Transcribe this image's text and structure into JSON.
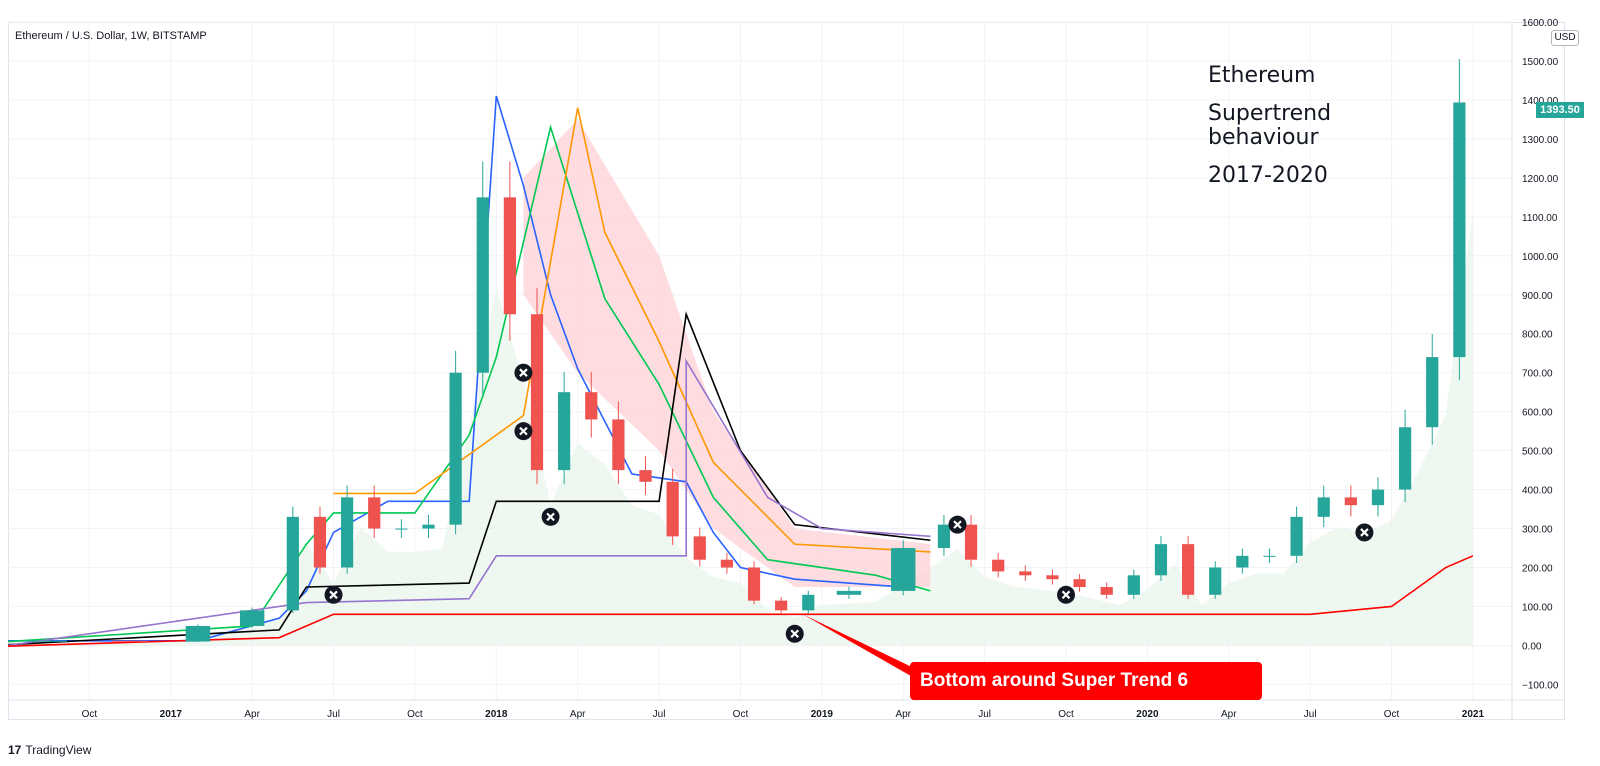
{
  "header": {
    "symbol_title": "Ethereum / U.S. Dollar, 1W, BITSTAMP",
    "currency": "USD"
  },
  "annotation": {
    "line1": "Ethereum",
    "line2": "Supertrend\nbehaviour",
    "line3": "2017-2020"
  },
  "callout": {
    "text": "Bottom around Super Trend 6"
  },
  "last_price": {
    "text": "1393.50",
    "color": "#26a69a"
  },
  "footer": {
    "brand": "TradingView"
  },
  "colors": {
    "up": "#26a69a",
    "down": "#ef5350",
    "st1": "#2962ff",
    "st2": "#00c853",
    "st3": "#ff9800",
    "st4": "#000000",
    "st5": "#9575cd",
    "st6": "#ff0000"
  },
  "chart_data": {
    "type": "line",
    "title": "Ethereum / U.S. Dollar, 1W, BITSTAMP",
    "ylim": [
      -140,
      1600
    ],
    "y_ticks": [
      -100,
      0,
      100,
      200,
      300,
      400,
      500,
      600,
      700,
      800,
      900,
      1000,
      1100,
      1200,
      1300,
      1400,
      1500,
      1600
    ],
    "y_tick_labels": [
      "−100.00",
      "0.00",
      "100.00",
      "200.00",
      "300.00",
      "400.00",
      "500.00",
      "600.00",
      "700.00",
      "800.00",
      "900.00",
      "1000.00",
      "1100.00",
      "1200.00",
      "1300.00",
      "1400.00",
      "1500.00",
      "1600.00"
    ],
    "x_tick_labels": [
      "Oct",
      "2017",
      "Apr",
      "Jul",
      "Oct",
      "2018",
      "Apr",
      "Jul",
      "Oct",
      "2019",
      "Apr",
      "Jul",
      "Oct",
      "2020",
      "Apr",
      "Jul",
      "Oct",
      "2021"
    ],
    "x_tick_bold": [
      false,
      true,
      false,
      false,
      false,
      true,
      false,
      false,
      false,
      true,
      false,
      false,
      false,
      true,
      false,
      false,
      false,
      true
    ],
    "x_tick_dates": [
      "2016-10",
      "2017-01",
      "2017-04",
      "2017-07",
      "2017-10",
      "2018-01",
      "2018-04",
      "2018-07",
      "2018-10",
      "2019-01",
      "2019-04",
      "2019-07",
      "2019-10",
      "2020-01",
      "2020-04",
      "2020-07",
      "2020-10",
      "2021-01"
    ],
    "series": [
      {
        "name": "ETHUSD close",
        "x": [
          "2016-07",
          "2016-10",
          "2017-01",
          "2017-03",
          "2017-05",
          "2017-06",
          "2017-07",
          "2017-08",
          "2017-09",
          "2017-10",
          "2017-11",
          "2017-12",
          "2018-01",
          "2018-02",
          "2018-03",
          "2018-04",
          "2018-05",
          "2018-06",
          "2018-07",
          "2018-08",
          "2018-09",
          "2018-10",
          "2018-11",
          "2018-12",
          "2019-01",
          "2019-03",
          "2019-05",
          "2019-06",
          "2019-07",
          "2019-08",
          "2019-09",
          "2019-10",
          "2019-11",
          "2019-12",
          "2020-01",
          "2020-02",
          "2020-03",
          "2020-04",
          "2020-05",
          "2020-06",
          "2020-07",
          "2020-08",
          "2020-09",
          "2020-10",
          "2020-11",
          "2020-12",
          "2021-01"
        ],
        "values": [
          12,
          12,
          10,
          50,
          90,
          330,
          200,
          380,
          300,
          300,
          310,
          700,
          1150,
          850,
          450,
          650,
          580,
          450,
          420,
          280,
          220,
          200,
          115,
          90,
          130,
          140,
          250,
          310,
          220,
          190,
          180,
          170,
          150,
          130,
          180,
          260,
          130,
          200,
          230,
          230,
          330,
          380,
          360,
          400,
          560,
          740,
          1393.5
        ]
      }
    ],
    "supertrend_segments": [
      {
        "name": "st1",
        "color": "#2962ff",
        "points": [
          [
            "2016-07",
            12
          ],
          [
            "2017-02",
            12
          ],
          [
            "2017-05",
            70
          ],
          [
            "2017-06",
            140
          ],
          [
            "2017-07",
            290
          ],
          [
            "2017-09",
            370
          ],
          [
            "2017-12",
            370
          ],
          [
            "2018-01",
            1410
          ],
          [
            "2018-02",
            1180
          ],
          [
            "2018-03",
            900
          ],
          [
            "2018-04",
            710
          ],
          [
            "2018-06",
            440
          ],
          [
            "2018-08",
            420
          ],
          [
            "2018-09",
            290
          ],
          [
            "2018-10",
            200
          ],
          [
            "2018-12",
            170
          ],
          [
            "2019-04",
            150
          ]
        ]
      },
      {
        "name": "st2",
        "color": "#00c853",
        "points": [
          [
            "2016-07",
            10
          ],
          [
            "2017-04",
            50
          ],
          [
            "2017-06",
            260
          ],
          [
            "2017-07",
            340
          ],
          [
            "2017-10",
            340
          ],
          [
            "2017-12",
            540
          ],
          [
            "2018-01",
            740
          ],
          [
            "2018-03",
            1330
          ],
          [
            "2018-05",
            890
          ],
          [
            "2018-07",
            670
          ],
          [
            "2018-09",
            380
          ],
          [
            "2018-11",
            220
          ],
          [
            "2019-03",
            180
          ],
          [
            "2019-05",
            140
          ]
        ]
      },
      {
        "name": "st3",
        "color": "#ff9800",
        "points": [
          [
            "2017-07",
            390
          ],
          [
            "2017-10",
            390
          ],
          [
            "2018-02",
            590
          ],
          [
            "2018-04",
            1380
          ],
          [
            "2018-05",
            1060
          ],
          [
            "2018-07",
            780
          ],
          [
            "2018-09",
            470
          ],
          [
            "2018-12",
            260
          ],
          [
            "2019-05",
            240
          ]
        ]
      },
      {
        "name": "st4",
        "color": "#000000",
        "points": [
          [
            "2016-07",
            2
          ],
          [
            "2017-05",
            40
          ],
          [
            "2017-06",
            150
          ],
          [
            "2017-12",
            160
          ],
          [
            "2018-01",
            370
          ],
          [
            "2018-07",
            370
          ],
          [
            "2018-08",
            850
          ],
          [
            "2018-10",
            500
          ],
          [
            "2018-12",
            310
          ],
          [
            "2019-05",
            270
          ]
        ]
      },
      {
        "name": "st5",
        "color": "#9575cd",
        "points": [
          [
            "2016-07",
            0
          ],
          [
            "2017-06",
            110
          ],
          [
            "2017-12",
            120
          ],
          [
            "2018-01",
            230
          ],
          [
            "2018-08",
            230
          ],
          [
            "2018-08",
            730
          ],
          [
            "2018-11",
            380
          ],
          [
            "2019-01",
            300
          ],
          [
            "2019-05",
            280
          ]
        ]
      },
      {
        "name": "st6",
        "color": "#ff0000",
        "points": [
          [
            "2016-07",
            -2
          ],
          [
            "2017-05",
            20
          ],
          [
            "2017-07",
            80
          ],
          [
            "2020-07",
            80
          ],
          [
            "2020-10",
            100
          ],
          [
            "2020-12",
            200
          ],
          [
            "2021-01",
            230
          ]
        ]
      }
    ],
    "markers_x": [
      "2017-07",
      "2018-02",
      "2018-02",
      "2018-03",
      "2018-12",
      "2019-06",
      "2019-10",
      "2020-09"
    ],
    "markers_y": [
      130,
      700,
      550,
      330,
      30,
      310,
      130,
      290
    ],
    "legend": "none",
    "grid": true
  }
}
